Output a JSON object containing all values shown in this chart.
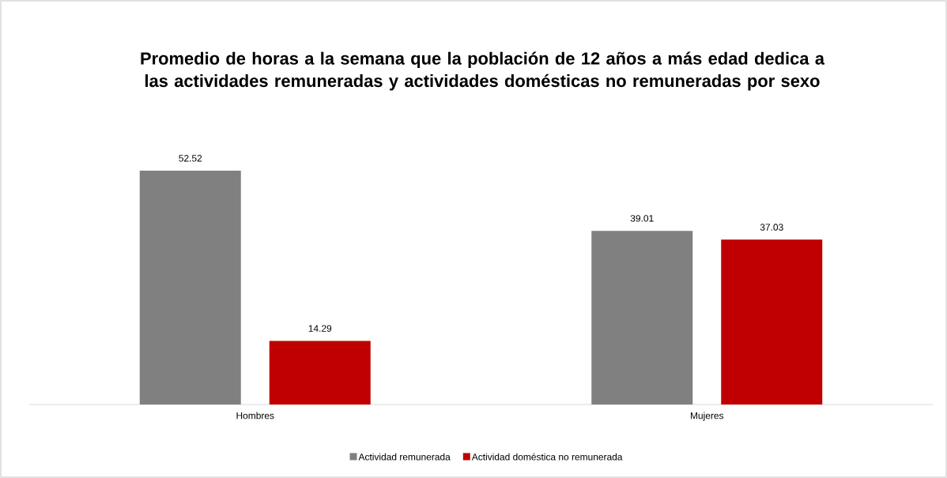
{
  "chart_data": {
    "type": "bar",
    "title": "Promedio de horas a la semana que la población de 12 años a más edad dedica a las actividades remuneradas y actividades domésticas no remuneradas por sexo",
    "categories": [
      "Hombres",
      "Mujeres"
    ],
    "series": [
      {
        "name": "Actividad remunerada",
        "color": "#808080",
        "values": [
          52.52,
          39.01
        ]
      },
      {
        "name": "Actividad doméstica no remunerada",
        "color": "#c00000",
        "values": [
          14.29,
          37.03
        ]
      }
    ],
    "data_labels": true,
    "legend": "bottom"
  }
}
